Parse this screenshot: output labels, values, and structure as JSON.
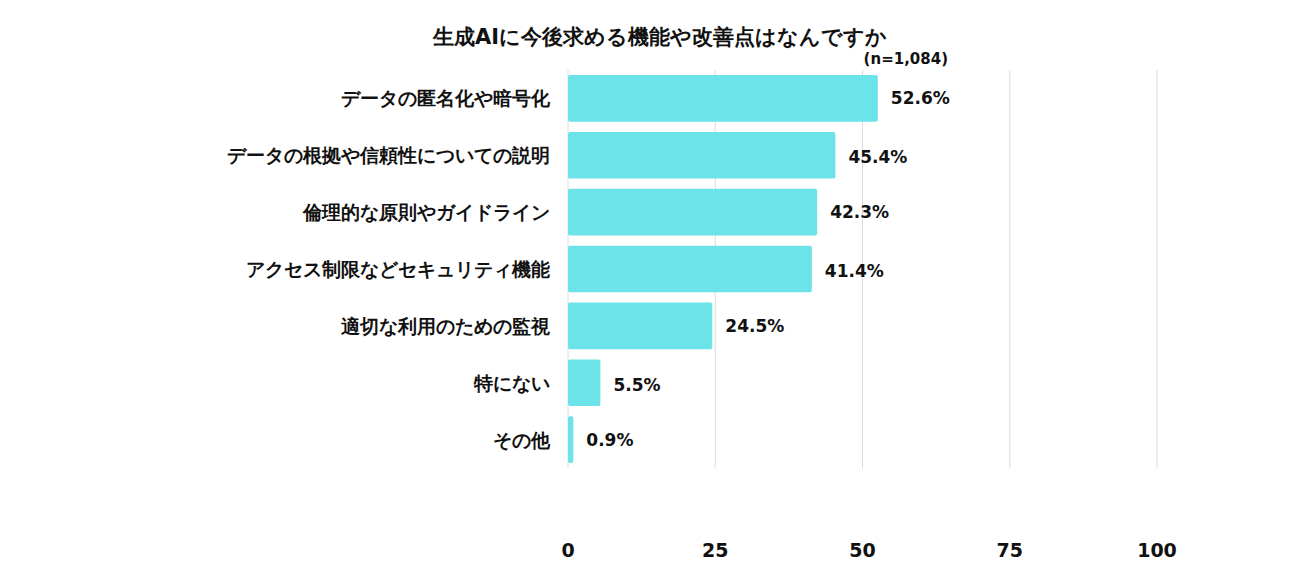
{
  "chart_data": {
    "type": "bar",
    "orientation": "horizontal",
    "title": "生成AIに今後求める機能や改善点はなんですか",
    "subtitle": "(n=1,084)",
    "categories": [
      "データの匿名化や暗号化",
      "データの根拠や信頼性についての説明",
      "倫理的な原則やガイドライン",
      "アクセス制限などセキュリティ機能",
      "適切な利用のための監視",
      "特にない",
      "その他"
    ],
    "values": [
      52.6,
      45.4,
      42.3,
      41.4,
      24.5,
      5.5,
      0.9
    ],
    "value_labels": [
      "52.6%",
      "45.4%",
      "42.3%",
      "41.4%",
      "24.5%",
      "5.5%",
      "0.9%"
    ],
    "color": "#6ce3e9",
    "xlim": [
      0,
      100
    ],
    "xticks": [
      0,
      25,
      50,
      75,
      100
    ],
    "grid": true,
    "data_labels": true
  }
}
